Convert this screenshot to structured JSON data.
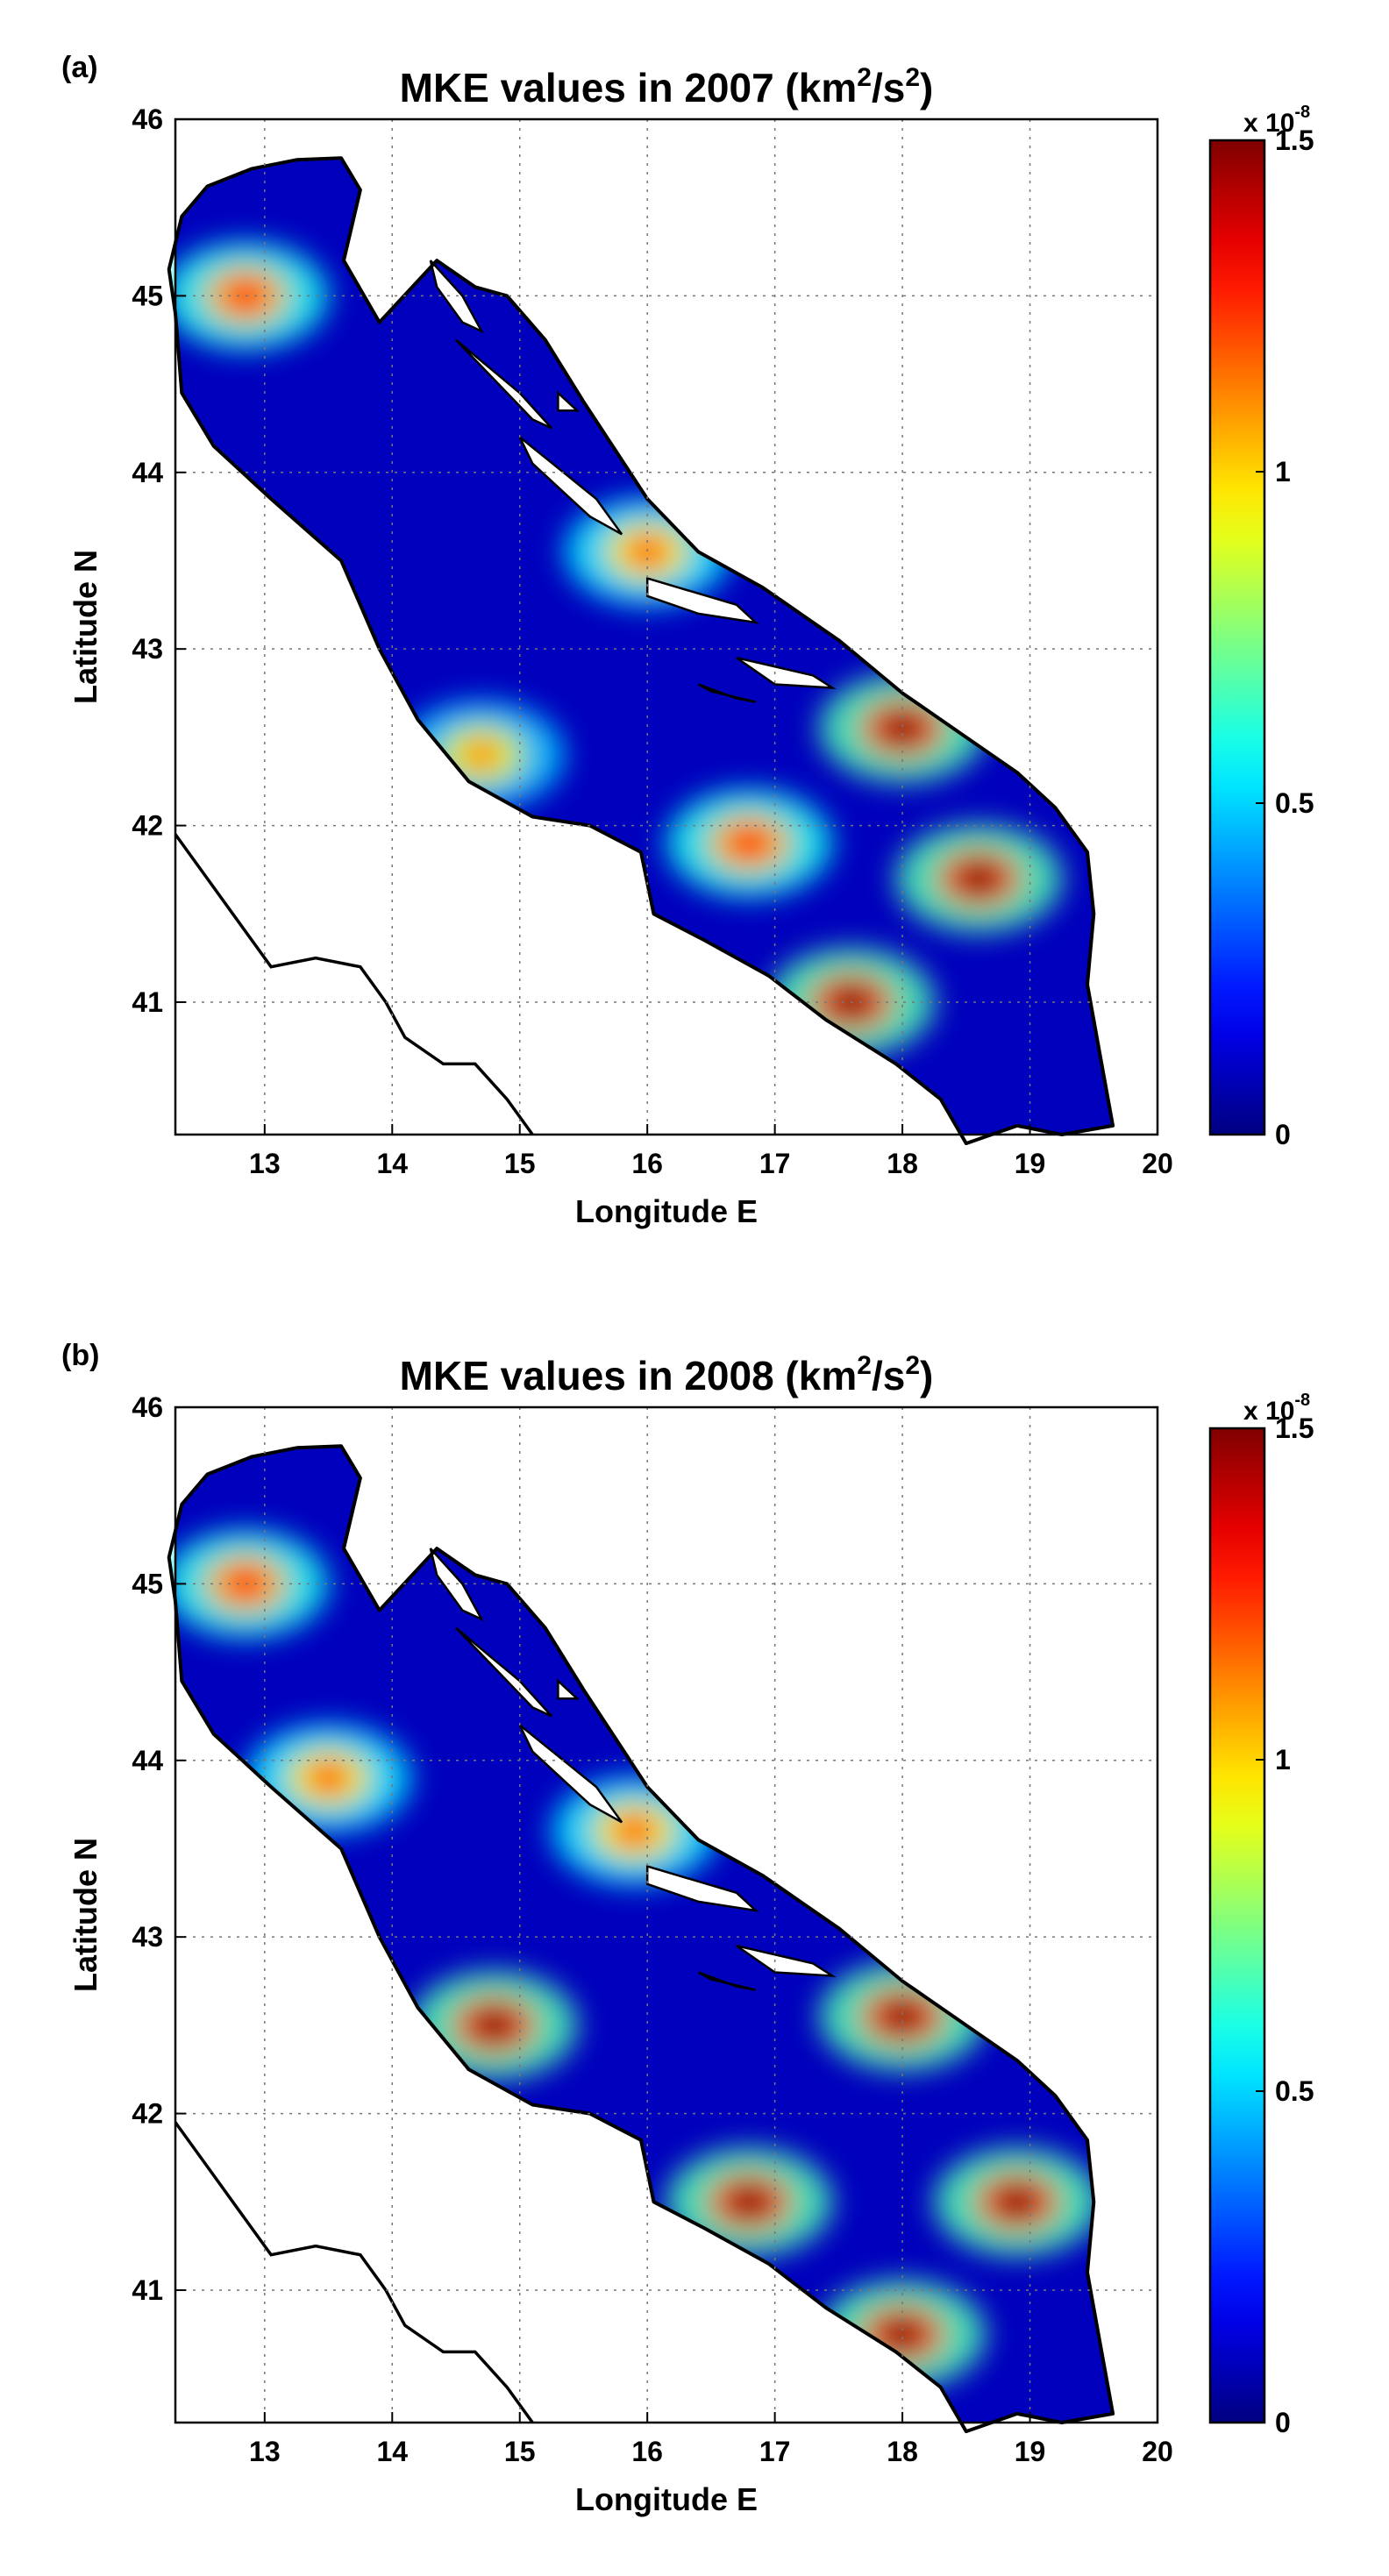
{
  "chart_data": [
    {
      "panel_label": "(a)",
      "type": "heatmap",
      "title_prefix": "MKE values in 2007 (km",
      "title_sup1": "2",
      "title_mid": "/s",
      "title_sup2": "2",
      "title_suffix": ")",
      "xlabel": "Longitude E",
      "ylabel": "Latitude N",
      "xlim": [
        12.3,
        20.0
      ],
      "ylim": [
        40.25,
        46.0
      ],
      "x_ticks": [
        13,
        14,
        15,
        16,
        17,
        18,
        19,
        20
      ],
      "y_ticks": [
        41,
        42,
        43,
        44,
        45,
        46
      ],
      "grid": true,
      "colormap": "jet",
      "colorbar": {
        "min": 0,
        "max": 1.5,
        "ticks": [
          0,
          0.5,
          1,
          1.5
        ],
        "tick_labels": [
          "0",
          "0.5",
          "1",
          "1.5"
        ],
        "exponent_prefix": "x 10",
        "exponent": "-8"
      },
      "high_value_features": [
        {
          "lon": 18.6,
          "lat": 41.7,
          "level": 1.5
        },
        {
          "lon": 17.6,
          "lat": 41.0,
          "level": 1.5
        },
        {
          "lon": 18.0,
          "lat": 42.55,
          "level": 1.5
        },
        {
          "lon": 16.8,
          "lat": 41.9,
          "level": 1.3
        },
        {
          "lon": 16.0,
          "lat": 43.55,
          "level": 1.2
        },
        {
          "lon": 14.7,
          "lat": 42.4,
          "level": 1.1
        },
        {
          "lon": 12.85,
          "lat": 45.0,
          "level": 1.3
        }
      ]
    },
    {
      "panel_label": "(b)",
      "type": "heatmap",
      "title_prefix": "MKE values in 2008 (km",
      "title_sup1": "2",
      "title_mid": "/s",
      "title_sup2": "2",
      "title_suffix": ")",
      "xlabel": "Longitude E",
      "ylabel": "Latitude N",
      "xlim": [
        12.3,
        20.0
      ],
      "ylim": [
        40.25,
        46.0
      ],
      "x_ticks": [
        13,
        14,
        15,
        16,
        17,
        18,
        19,
        20
      ],
      "y_ticks": [
        41,
        42,
        43,
        44,
        45,
        46
      ],
      "grid": true,
      "colormap": "jet",
      "colorbar": {
        "min": 0,
        "max": 1.5,
        "ticks": [
          0,
          0.5,
          1,
          1.5
        ],
        "tick_labels": [
          "0",
          "0.5",
          "1",
          "1.5"
        ],
        "exponent_prefix": "x 10",
        "exponent": "-8"
      },
      "high_value_features": [
        {
          "lon": 14.8,
          "lat": 42.5,
          "level": 1.5
        },
        {
          "lon": 16.8,
          "lat": 41.5,
          "level": 1.5
        },
        {
          "lon": 18.0,
          "lat": 42.55,
          "level": 1.5
        },
        {
          "lon": 18.9,
          "lat": 41.5,
          "level": 1.5
        },
        {
          "lon": 18.0,
          "lat": 40.75,
          "level": 1.5
        },
        {
          "lon": 13.5,
          "lat": 43.9,
          "level": 1.2
        },
        {
          "lon": 15.9,
          "lat": 43.6,
          "level": 1.2
        },
        {
          "lon": 12.85,
          "lat": 45.0,
          "level": 1.3
        }
      ]
    }
  ]
}
